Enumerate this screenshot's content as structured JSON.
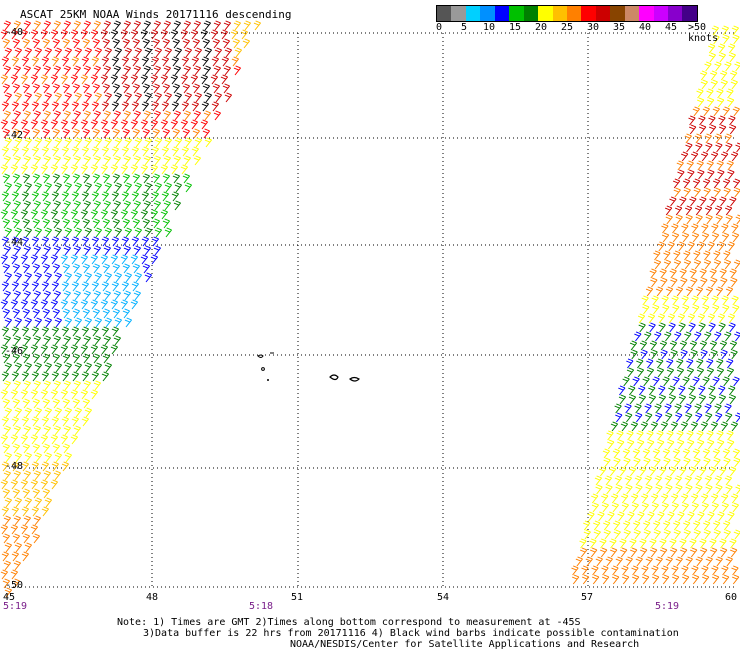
{
  "title": "ASCAT 25KM NOAA Winds 20171116 descending",
  "legend": {
    "colors": [
      "#555555",
      "#999999",
      "#00d0ff",
      "#0090ff",
      "#0000ff",
      "#00c000",
      "#008000",
      "#ffff00",
      "#ffc000",
      "#ff8000",
      "#ff0000",
      "#cc0000",
      "#884400",
      "#cc8866",
      "#ff00ff",
      "#cc00ff",
      "#8800cc",
      "#440088"
    ],
    "labels": [
      "0",
      "5",
      "10",
      "15",
      "20",
      "25",
      "30",
      "35",
      "40",
      "45",
      ">50 knots"
    ]
  },
  "axes": {
    "lat_labels": [
      "-40",
      "-42",
      "-44",
      "-46",
      "-48",
      "-50"
    ],
    "lon_labels": [
      "45",
      "48",
      "51",
      "54",
      "57",
      "60"
    ]
  },
  "times": [
    "5:19",
    "5:18",
    "5:19"
  ],
  "notes": {
    "line1": "Note: 1) Times are GMT 2)Times along bottom correspond to measurement at -45S",
    "line2": "3)Data buffer is 22 hrs from 20171116 4) Black wind barbs indicate possible contamination",
    "line3": "NOAA/NESDIS/Center for Satellite Applications and Research"
  }
}
